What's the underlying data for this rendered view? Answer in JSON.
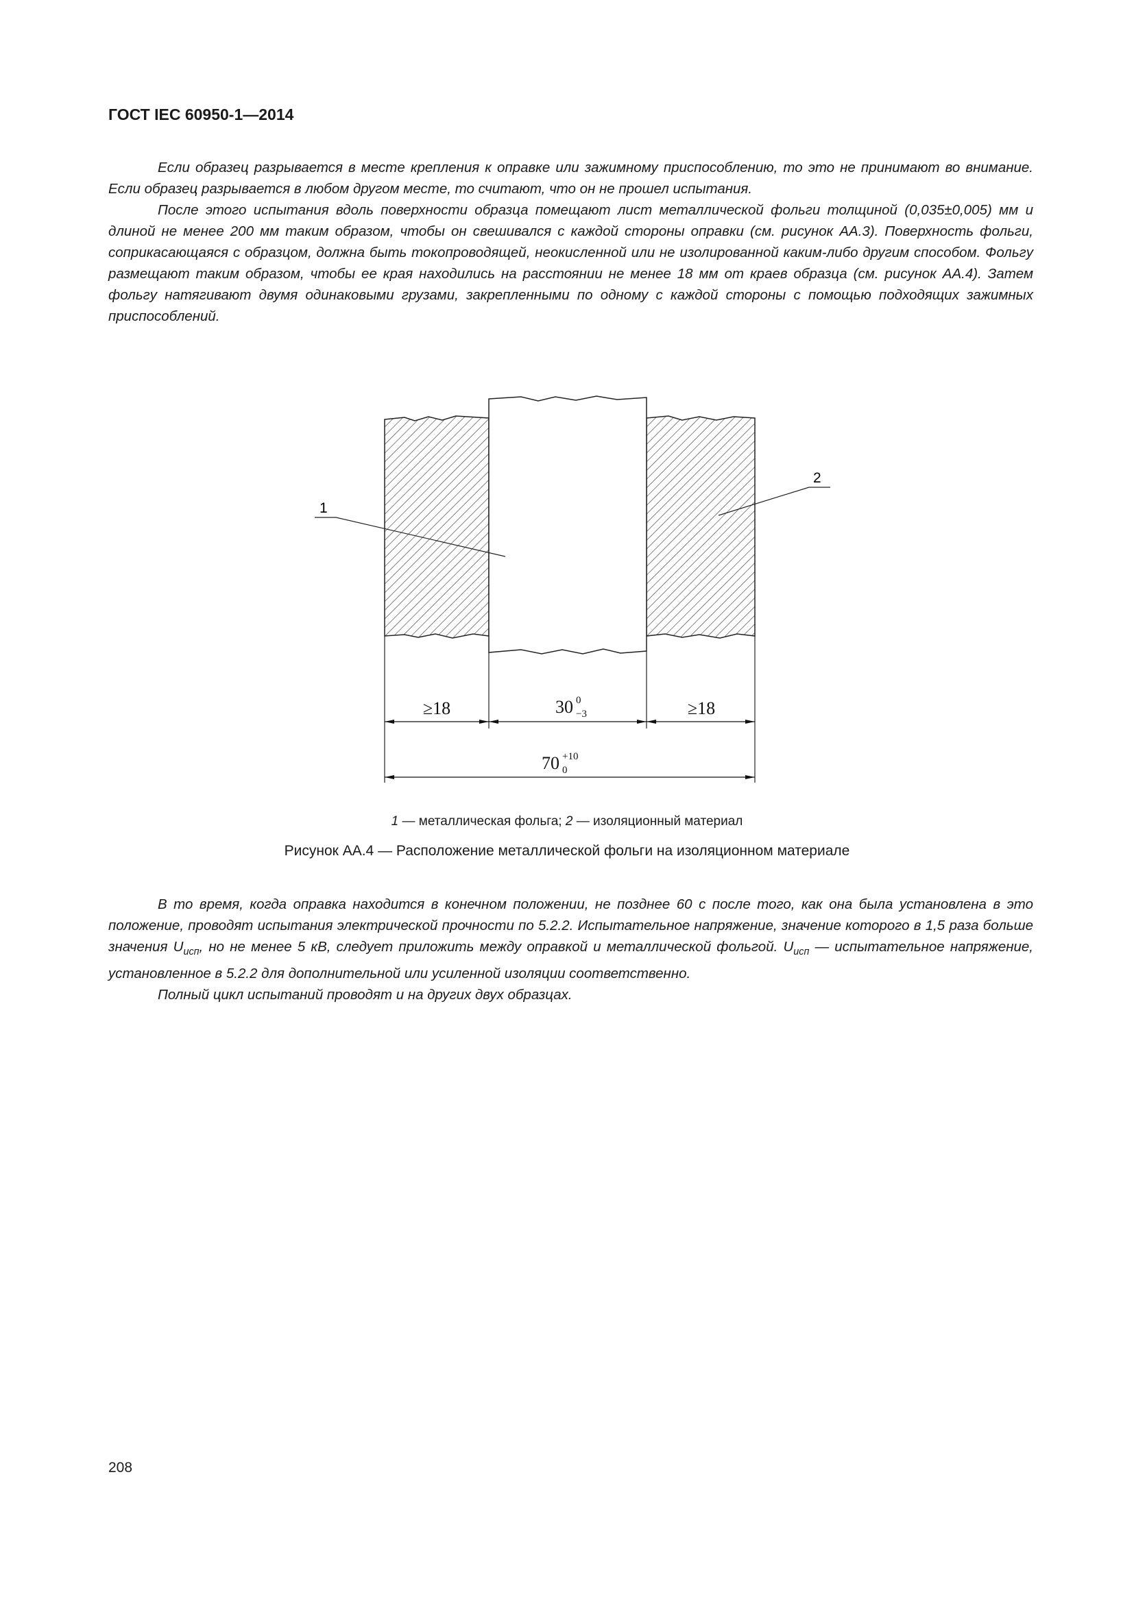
{
  "header": {
    "title": "ГОСТ IEC 60950-1—2014"
  },
  "paragraphs_top": [
    "Если образец разрывается в месте крепления к оправке или зажимному приспособлению, то это не принимают во внимание. Если образец разрывается в любом другом месте, то считают, что он не прошел испытания.",
    "После этого испытания вдоль поверхности образца помещают лист металлической фольги толщиной (0,035±0,005) мм и длиной не менее 200 мм таким образом, чтобы он свешивался с каждой стороны оправки (см. рисунок АА.3). Поверхность фольги, соприкасающаяся с образцом, должна быть токопроводящей, неокисленной или не изолированной каким-либо другим способом. Фольгу размещают таким образом, чтобы ее края находились на расстоянии не менее 18 мм от краев образца (см. рисунок АА.4). Затем фольгу натягивают двумя одинаковыми грузами, закрепленными по одному с каждой стороны с помощью подходящих зажимных приспособлений."
  ],
  "figure": {
    "callout_1": "1",
    "callout_2": "2",
    "dim_left": "≥18",
    "dim_center_base": "30",
    "dim_center_upper": "0",
    "dim_center_lower": "−3",
    "dim_right": "≥18",
    "dim_total_base": "70",
    "dim_total_upper": "+10",
    "dim_total_lower": "0",
    "legend_num1": "1",
    "legend_text1": " — металлическая фольга; ",
    "legend_num2": "2",
    "legend_text2": " — изоляционный материал",
    "title": "Рисунок АА.4 — Расположение металлической фольги на изоляционном материале"
  },
  "paragraphs_bottom": {
    "p1_a": "В то время, когда оправка находится в конечном положении, не позднее 60 с после того, как она была установлена в это положение, проводят испытания электрической прочности по 5.2.2. Испытательное напряжение, значение которого в 1,5 раза больше значения U",
    "p1_sub1": "исп",
    "p1_b": ", но не менее 5 кВ, следует приложить между оправкой и металлической фольгой. U",
    "p1_sub2": "исп",
    "p1_c": " — испытательное напряжение, установленное в 5.2.2 для дополнительной или усиленной изоляции соответственно.",
    "p2": "Полный цикл испытаний проводят и на других двух образцах."
  },
  "page_number": "208"
}
